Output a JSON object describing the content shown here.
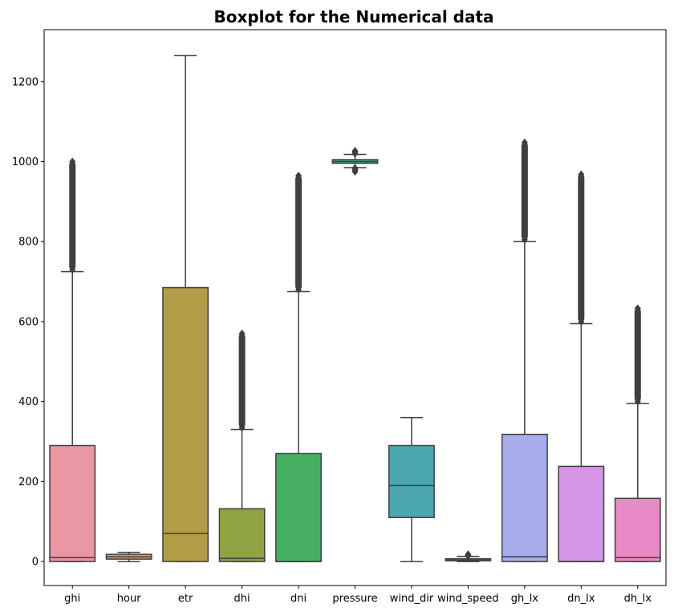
{
  "chart_data": {
    "type": "boxplot",
    "title": "Boxplot for the Numerical data",
    "xlabel": "",
    "ylabel": "",
    "ylim": [
      -60,
      1330
    ],
    "yticks": [
      0,
      200,
      400,
      600,
      800,
      1000,
      1200
    ],
    "grid": false,
    "categories": [
      "ghi",
      "hour",
      "etr",
      "dhi",
      "dni",
      "pressure",
      "wind_dir",
      "wind_speed",
      "gh_lx",
      "dn_lx",
      "dh_lx"
    ],
    "series": [
      {
        "category": "ghi",
        "color": "#ea96a3",
        "whisker_low": 0,
        "q1": 0,
        "median": 10,
        "q3": 290,
        "whisker_high": 725,
        "outliers_low": [],
        "outliers_high": [
          730,
          1000
        ]
      },
      {
        "category": "hour",
        "color": "#d99c6a",
        "whisker_low": 0,
        "q1": 6,
        "median": 12,
        "q3": 18,
        "whisker_high": 23,
        "outliers_low": [],
        "outliers_high": []
      },
      {
        "category": "etr",
        "color": "#b29d46",
        "whisker_low": 0,
        "q1": 0,
        "median": 70,
        "q3": 685,
        "whisker_high": 1265,
        "outliers_low": [],
        "outliers_high": []
      },
      {
        "category": "dhi",
        "color": "#8fa244",
        "whisker_low": 0,
        "q1": 0,
        "median": 8,
        "q3": 132,
        "whisker_high": 330,
        "outliers_low": [],
        "outliers_high": [
          335,
          570
        ]
      },
      {
        "category": "dni",
        "color": "#48b063",
        "whisker_low": 0,
        "q1": 0,
        "median": 0,
        "q3": 270,
        "whisker_high": 675,
        "outliers_low": [],
        "outliers_high": [
          680,
          965
        ]
      },
      {
        "category": "pressure",
        "color": "#4cab95",
        "whisker_low": 985,
        "q1": 996,
        "median": 1000,
        "q3": 1005,
        "whisker_high": 1018,
        "outliers_low": [
          975,
          984
        ],
        "outliers_high": [
          1020,
          1027
        ]
      },
      {
        "category": "wind_dir",
        "color": "#4aa6b0",
        "whisker_low": 0,
        "q1": 110,
        "median": 190,
        "q3": 290,
        "whisker_high": 360,
        "outliers_low": [],
        "outliers_high": []
      },
      {
        "category": "wind_speed",
        "color": "#56a0d6",
        "whisker_low": 0,
        "q1": 2,
        "median": 4,
        "q3": 7,
        "whisker_high": 13,
        "outliers_low": [],
        "outliers_high": [
          14,
          18
        ]
      },
      {
        "category": "gh_lx",
        "color": "#a7adea",
        "whisker_low": 0,
        "q1": 0,
        "median": 12,
        "q3": 318,
        "whisker_high": 800,
        "outliers_low": [],
        "outliers_high": [
          805,
          1048
        ]
      },
      {
        "category": "dn_lx",
        "color": "#d495e6",
        "whisker_low": 0,
        "q1": 0,
        "median": 0,
        "q3": 238,
        "whisker_high": 595,
        "outliers_low": [],
        "outliers_high": [
          600,
          968
        ]
      },
      {
        "category": "dh_lx",
        "color": "#e98ac7",
        "whisker_low": 0,
        "q1": 0,
        "median": 10,
        "q3": 158,
        "whisker_high": 395,
        "outliers_low": [],
        "outliers_high": [
          400,
          633
        ]
      }
    ]
  }
}
